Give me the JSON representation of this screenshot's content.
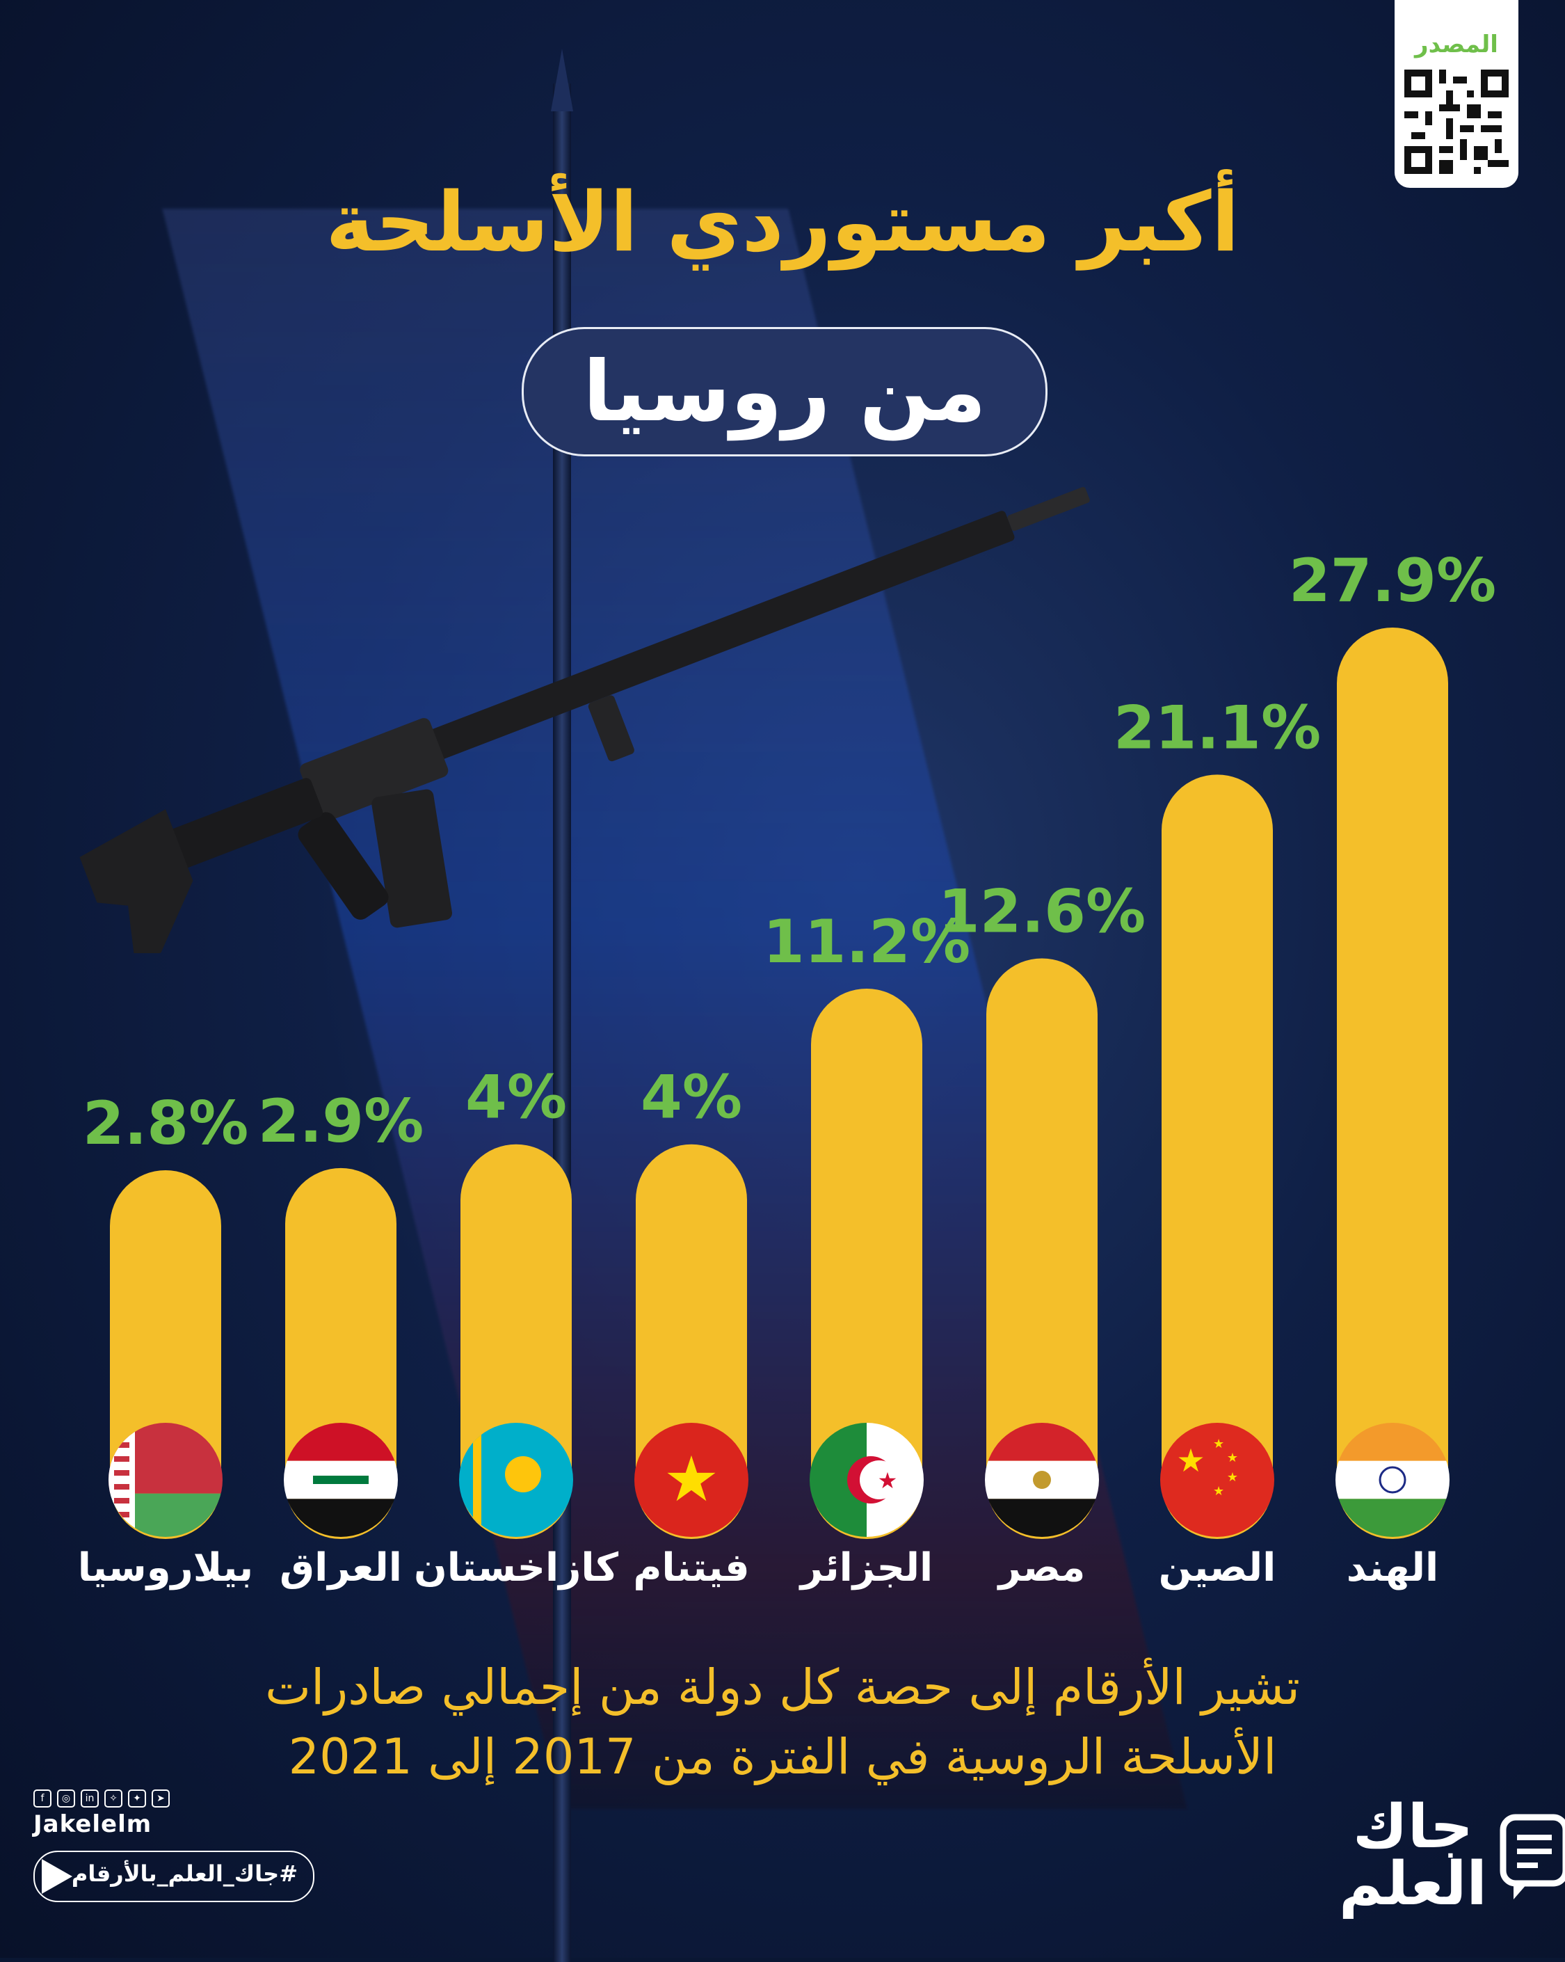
{
  "title": "أكبر مستوردي الأسلحة",
  "subtitle": "من روسيا",
  "source_label": "المصدر",
  "footnote_line1": "تشير الأرقام إلى حصة كل دولة من إجمالي صادرات",
  "footnote_line2": "الأسلحة الروسية في الفترة من 2017 إلى 2021",
  "brand": {
    "name_line1": "جاك",
    "name_line2": "العلم",
    "handle": "Jakelelm",
    "hashtag": "#جاك_العلم_بالأرقام"
  },
  "colors": {
    "bar": "#f4bf2a",
    "value": "#6fbf4a",
    "title": "#f4bf2a",
    "label": "#ffffff"
  },
  "chart_data": {
    "type": "bar",
    "categories": [
      "الهند",
      "الصين",
      "مصر",
      "الجزائر",
      "فيتنام",
      "كازاخستان",
      "العراق",
      "بيلاروسيا"
    ],
    "values": [
      27.9,
      21.1,
      12.6,
      11.2,
      4,
      4,
      2.9,
      2.8
    ],
    "value_labels": [
      "27.9%",
      "21.1%",
      "12.6%",
      "11.2%",
      "4%",
      "4%",
      "2.9%",
      "2.8%"
    ],
    "flags": [
      "india-flag",
      "china-flag",
      "egypt-flag",
      "algeria-flag",
      "vietnam-flag",
      "kazakhstan-flag",
      "iraq-flag",
      "belarus-flag"
    ],
    "unit": "%"
  }
}
